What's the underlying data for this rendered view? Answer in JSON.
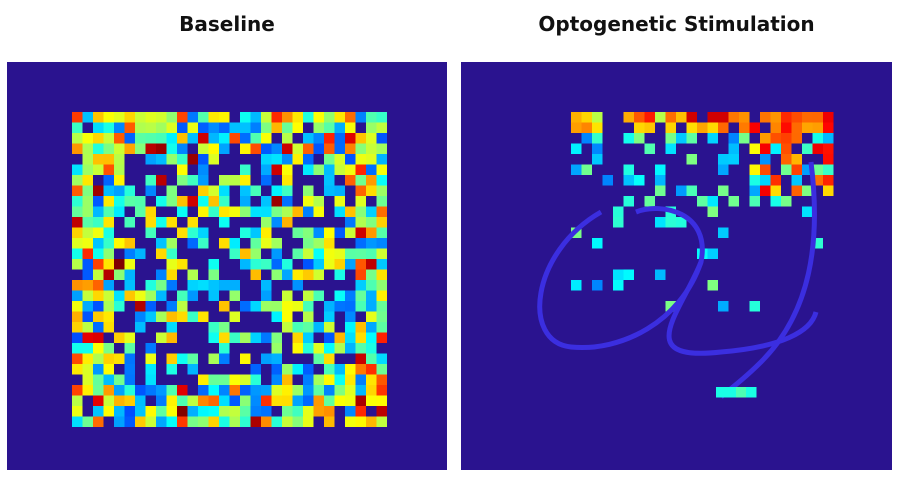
{
  "panels": [
    {
      "title": "Baseline"
    },
    {
      "title": "Optogenetic Stimulation"
    }
  ],
  "colors": {
    "background": "#2a138f",
    "colormap": "jet"
  }
}
